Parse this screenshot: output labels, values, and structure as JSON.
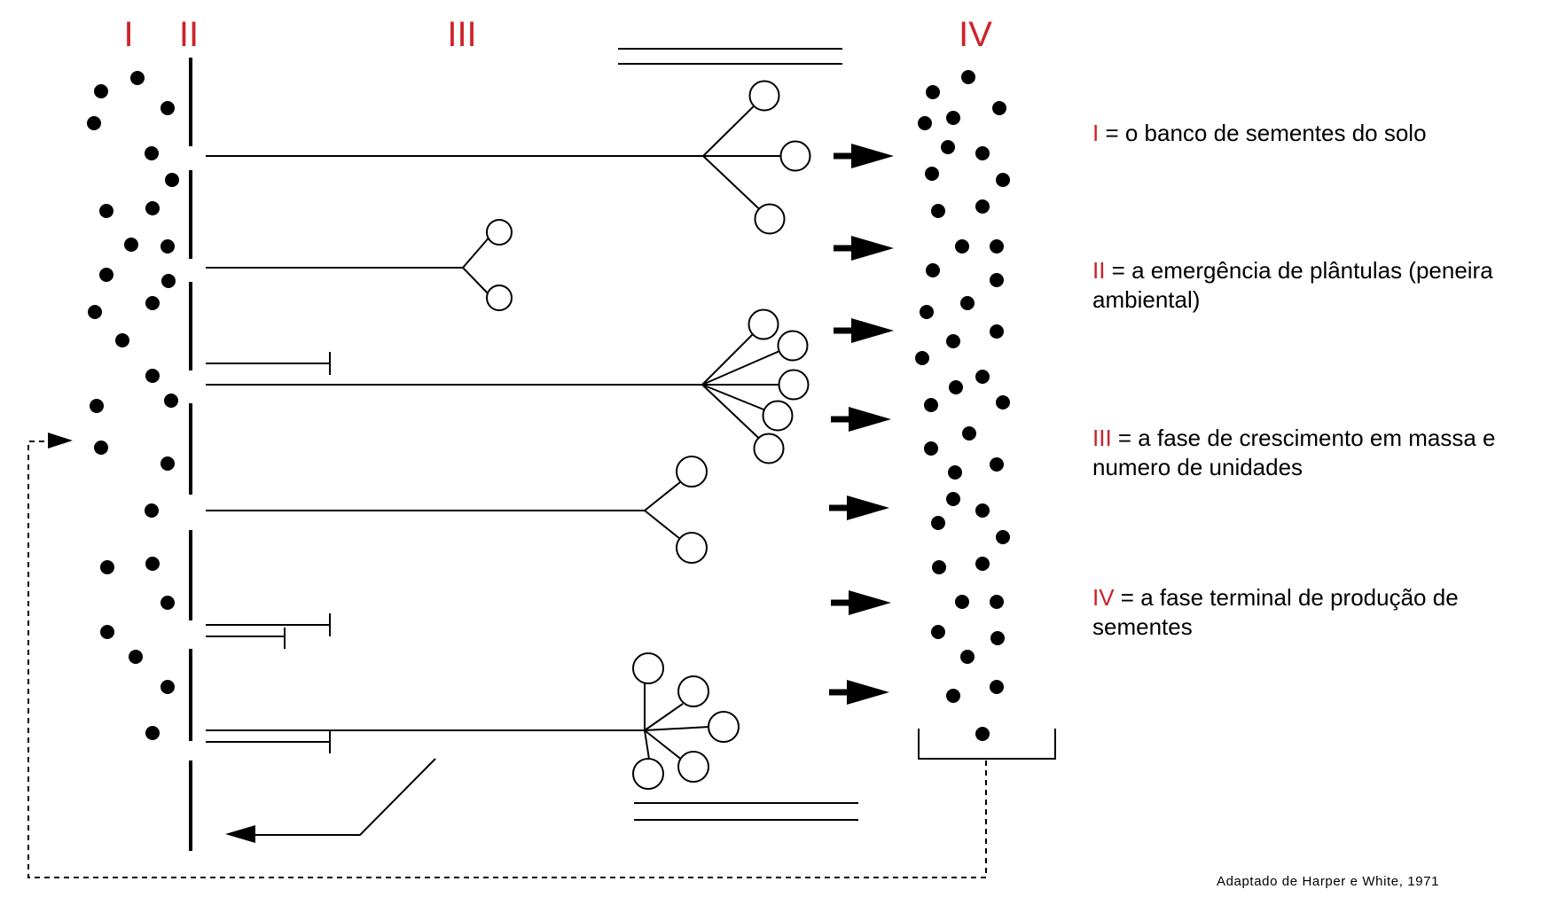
{
  "labels": {
    "phase_I": "I",
    "phase_II": "II",
    "phase_III": "III",
    "phase_IV": "IV"
  },
  "legend": [
    {
      "numeral": "I",
      "text": " = o banco de sementes do solo"
    },
    {
      "numeral": "II",
      "text": " = a emergência de plântulas (peneira ambiental)"
    },
    {
      "numeral": "III",
      "text": " = a fase de crescimento em massa e numero de unidades"
    },
    {
      "numeral": "IV",
      "text": " = a fase terminal de produção de sementes"
    }
  ],
  "credit": "Adaptado de Harper e White, 1971",
  "colors": {
    "accent": "#cc2229",
    "ink": "#000000"
  }
}
